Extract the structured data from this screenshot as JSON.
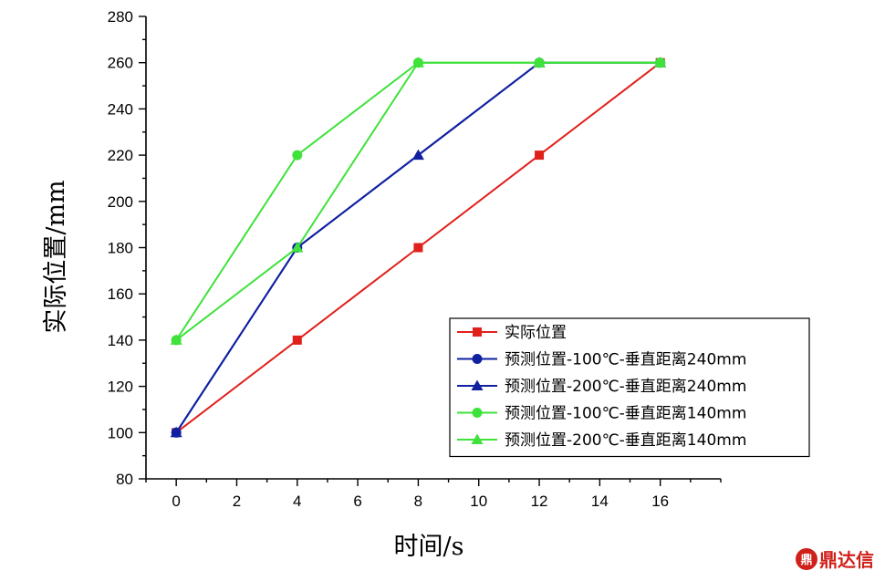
{
  "chart_data": {
    "type": "line",
    "xlabel": "时间/s",
    "ylabel": "实际位置/mm",
    "xlim": [
      -1,
      18
    ],
    "ylim": [
      80,
      280
    ],
    "xticks": [
      0,
      2,
      4,
      6,
      8,
      10,
      12,
      14,
      16
    ],
    "yticks": [
      80,
      100,
      120,
      140,
      160,
      180,
      200,
      220,
      240,
      260,
      280
    ],
    "grid": false,
    "legend_position": "bottom-right",
    "series": [
      {
        "name": "实际位置",
        "color": "#e0201b",
        "marker": "square",
        "x": [
          0,
          4,
          8,
          12,
          16
        ],
        "y": [
          100,
          140,
          180,
          220,
          260
        ]
      },
      {
        "name": "预测位置-100℃-垂直距离240mm",
        "color": "#1020a0",
        "marker": "circle",
        "x": [
          0,
          4,
          12,
          16
        ],
        "y": [
          100,
          180,
          260,
          260
        ]
      },
      {
        "name": "预测位置-200℃-垂直距离240mm",
        "color": "#1020a0",
        "marker": "triangle",
        "x": [
          0,
          4,
          8,
          12,
          16
        ],
        "y": [
          100,
          180,
          220,
          260,
          260
        ]
      },
      {
        "name": "预测位置-100℃-垂直距离140mm",
        "color": "#3ee23a",
        "marker": "circle",
        "x": [
          0,
          4,
          8,
          12,
          16
        ],
        "y": [
          140,
          220,
          260,
          260,
          260
        ]
      },
      {
        "name": "预测位置-200℃-垂直距离140mm",
        "color": "#3ee23a",
        "marker": "triangle",
        "x": [
          0,
          4,
          8,
          12,
          16
        ],
        "y": [
          140,
          180,
          260,
          260,
          260
        ]
      }
    ]
  },
  "watermark": {
    "logo_text": "鼎",
    "text": "鼎达信"
  }
}
